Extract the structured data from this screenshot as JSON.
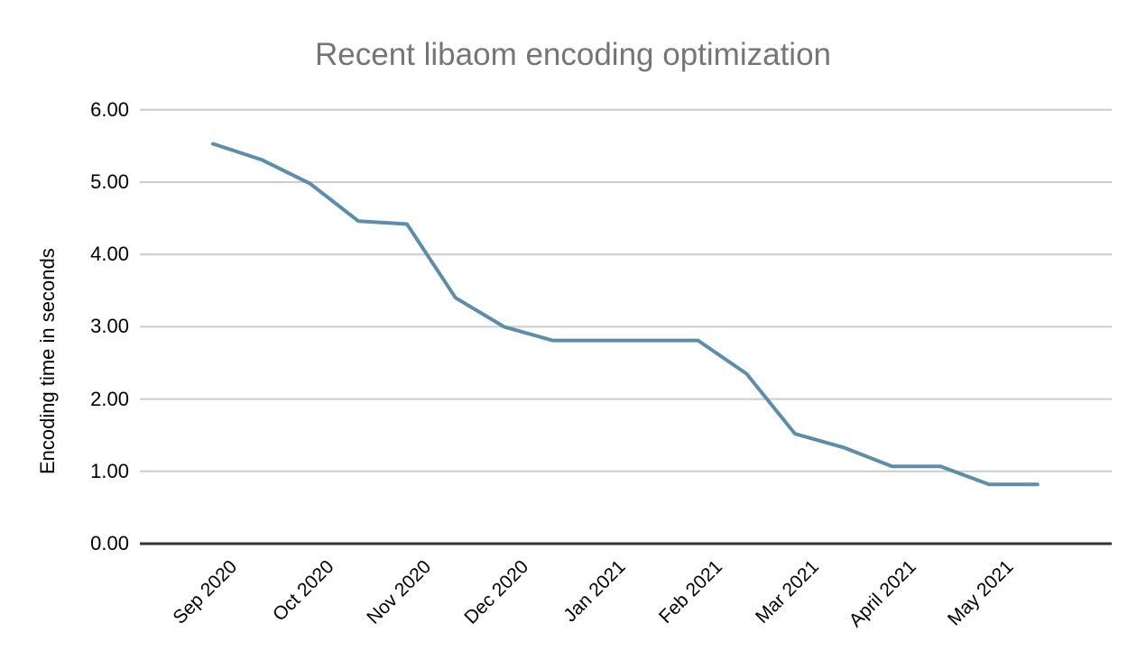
{
  "chart_data": {
    "type": "line",
    "title": "Recent libaom encoding optimization",
    "ylabel": "Encoding time in seconds",
    "xlabel": "",
    "ylim": [
      0,
      6
    ],
    "yticks": [
      "0.00",
      "1.00",
      "2.00",
      "3.00",
      "4.00",
      "5.00",
      "6.00"
    ],
    "categories": [
      "Sep 2020",
      "Oct 2020",
      "Nov 2020",
      "Dec 2020",
      "Jan 2021",
      "Feb 2021",
      "Mar 2021",
      "April 2021",
      "May 2021"
    ],
    "grid": true,
    "legend": "none",
    "markers": "none",
    "series": [
      {
        "color": "#5d8da7",
        "x_months": [
          0,
          0.5,
          1,
          1.5,
          2,
          2.5,
          3,
          3.5,
          4,
          4.5,
          5,
          5.5,
          6,
          6.5,
          7,
          7.5,
          8,
          8.5
        ],
        "values": [
          5.53,
          5.31,
          4.98,
          4.46,
          4.42,
          3.4,
          3.0,
          2.81,
          2.81,
          2.81,
          2.81,
          2.35,
          1.52,
          1.33,
          1.07,
          1.07,
          0.82,
          0.82
        ]
      }
    ],
    "colors": {
      "title": "#757575",
      "tick_text": "#000000",
      "gridline": "#cccccc",
      "axis_line": "#333333",
      "background": "#ffffff"
    }
  }
}
